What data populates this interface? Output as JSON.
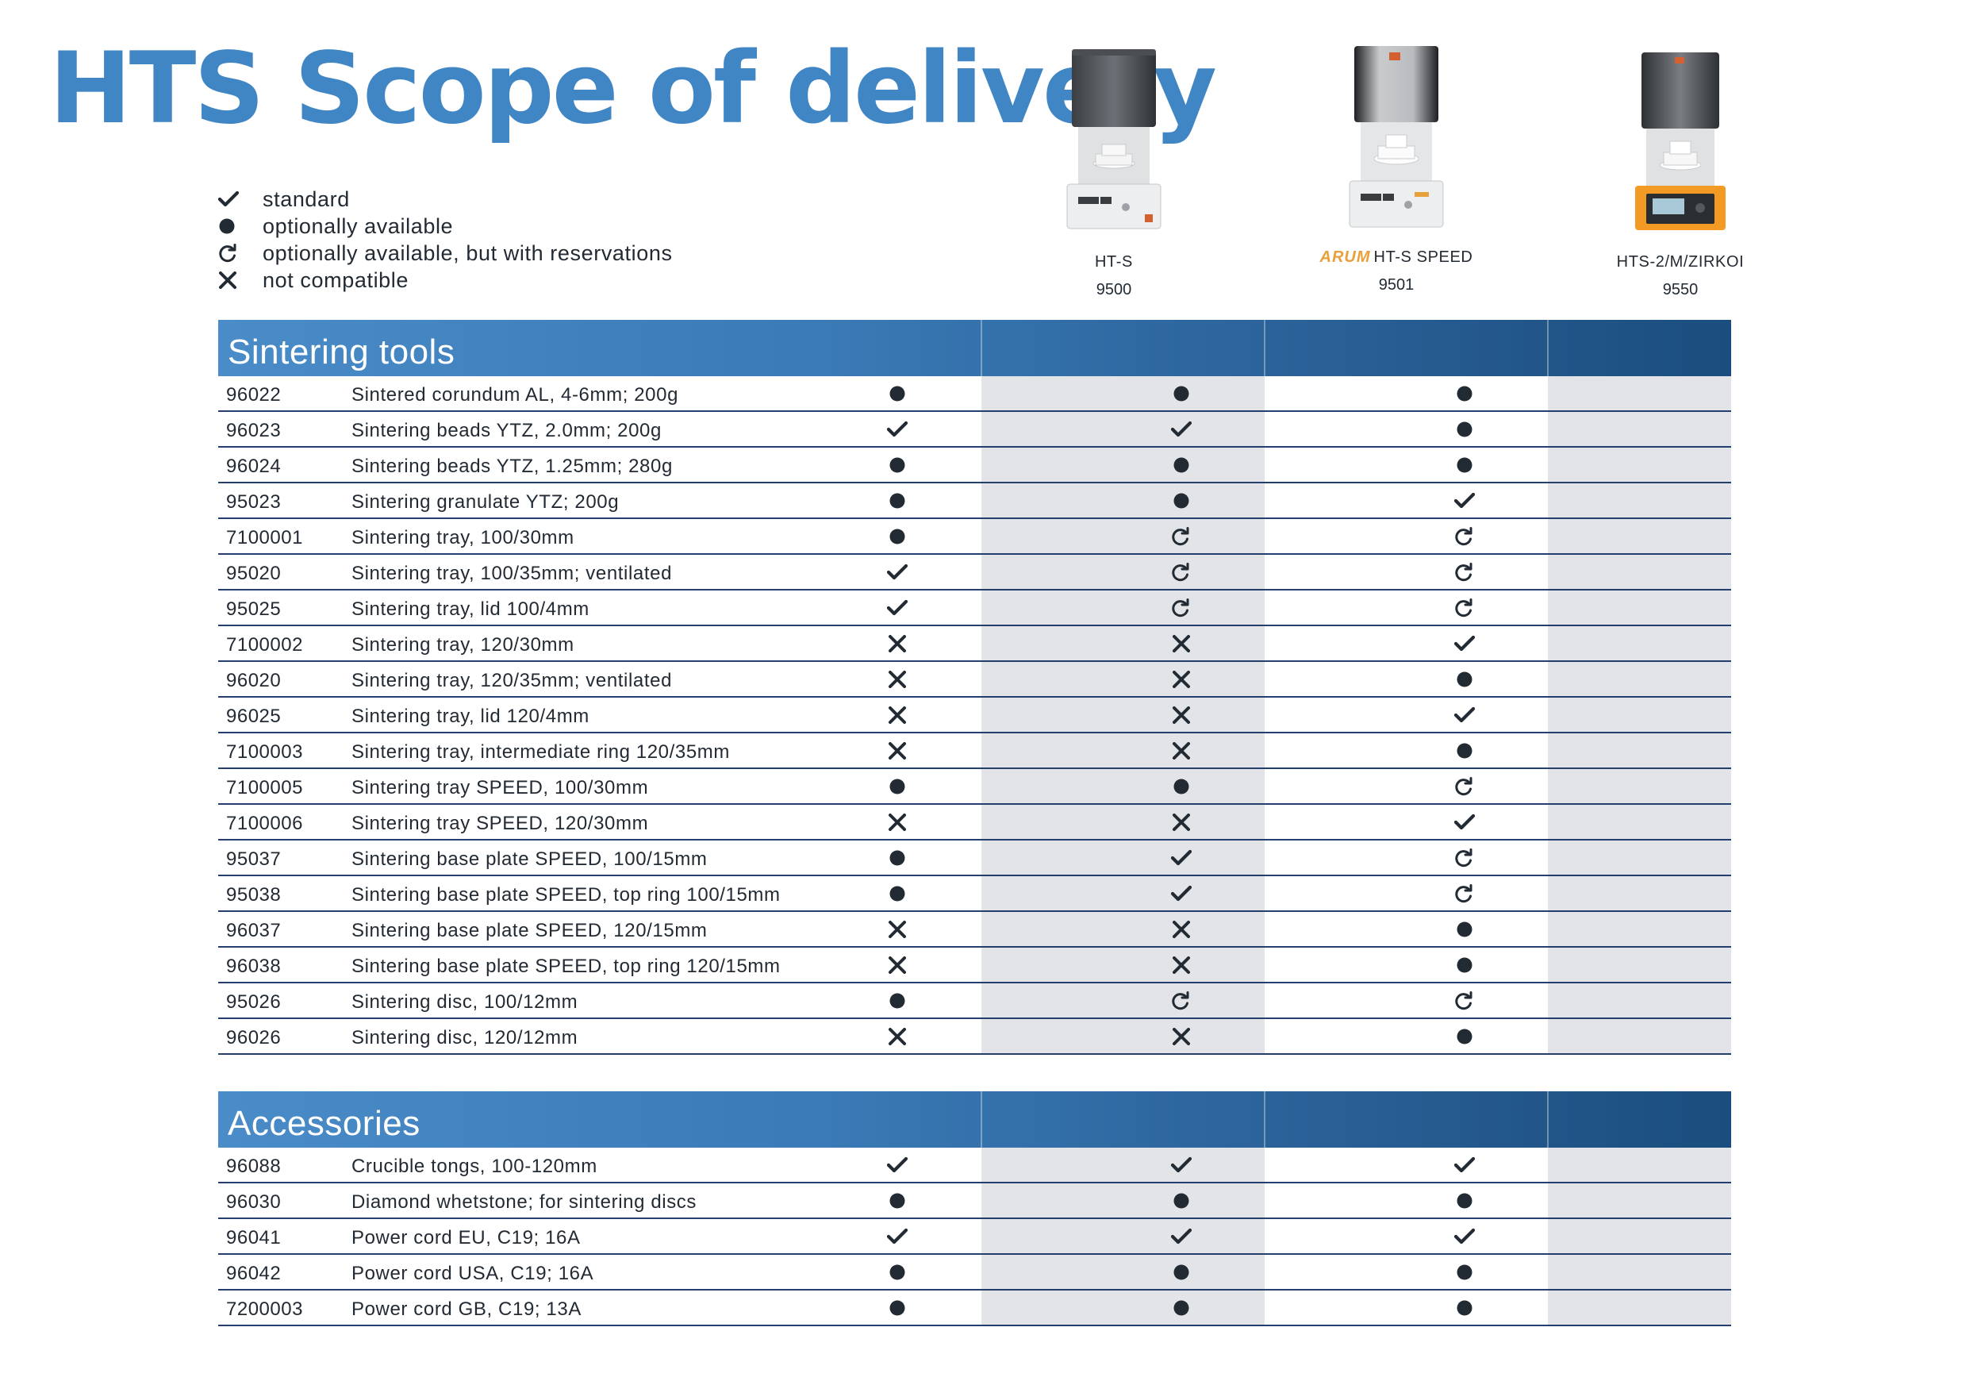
{
  "title": "HTS Scope of delivery",
  "legend": [
    {
      "icon": "check",
      "label": "standard"
    },
    {
      "icon": "dot",
      "label": "optionally available"
    },
    {
      "icon": "reservation",
      "label": "optionally available, but with reservations"
    },
    {
      "icon": "cross",
      "label": "not compatible"
    }
  ],
  "products": [
    {
      "name": "HT-S",
      "number": "9500",
      "brand": ""
    },
    {
      "name": "HT-S SPEED",
      "number": "9501",
      "brand": "ARUM"
    },
    {
      "name": "HTS-2/M/ZIRKOI",
      "number": "9550",
      "brand": ""
    }
  ],
  "colors": {
    "title": "#4186c4",
    "header_start": "#4a8cc8",
    "header_end": "#1b4d7e",
    "row_line": "#243f6e",
    "cell_bg": "#e2e4e7",
    "arum": "#e8a13a"
  },
  "sections": [
    {
      "title": "Sintering tools",
      "rows": [
        {
          "num": "96022",
          "desc": "Sintered corundum AL, 4-6mm; 200g",
          "status": [
            "dot",
            "dot",
            "dot"
          ]
        },
        {
          "num": "96023",
          "desc": "Sintering beads YTZ, 2.0mm; 200g",
          "status": [
            "check",
            "check",
            "dot"
          ]
        },
        {
          "num": "96024",
          "desc": "Sintering beads YTZ, 1.25mm; 280g",
          "status": [
            "dot",
            "dot",
            "dot"
          ]
        },
        {
          "num": "95023",
          "desc": "Sintering granulate YTZ; 200g",
          "status": [
            "dot",
            "dot",
            "check"
          ]
        },
        {
          "num": "7100001",
          "desc": "Sintering tray, 100/30mm",
          "status": [
            "dot",
            "reservation",
            "reservation"
          ]
        },
        {
          "num": "95020",
          "desc": "Sintering tray, 100/35mm; ventilated",
          "status": [
            "check",
            "reservation",
            "reservation"
          ]
        },
        {
          "num": "95025",
          "desc": "Sintering tray, lid 100/4mm",
          "status": [
            "check",
            "reservation",
            "reservation"
          ]
        },
        {
          "num": "7100002",
          "desc": "Sintering tray, 120/30mm",
          "status": [
            "cross",
            "cross",
            "check"
          ]
        },
        {
          "num": "96020",
          "desc": "Sintering tray, 120/35mm; ventilated",
          "status": [
            "cross",
            "cross",
            "dot"
          ]
        },
        {
          "num": "96025",
          "desc": "Sintering tray, lid 120/4mm",
          "status": [
            "cross",
            "cross",
            "check"
          ]
        },
        {
          "num": "7100003",
          "desc": "Sintering tray, intermediate ring 120/35mm",
          "status": [
            "cross",
            "cross",
            "dot"
          ]
        },
        {
          "num": "7100005",
          "desc": "Sintering tray SPEED, 100/30mm",
          "status": [
            "dot",
            "dot",
            "reservation"
          ]
        },
        {
          "num": "7100006",
          "desc": "Sintering tray SPEED, 120/30mm",
          "status": [
            "cross",
            "cross",
            "check"
          ]
        },
        {
          "num": "95037",
          "desc": "Sintering base plate SPEED, 100/15mm",
          "status": [
            "dot",
            "check",
            "reservation"
          ]
        },
        {
          "num": "95038",
          "desc": "Sintering base plate SPEED, top ring 100/15mm",
          "status": [
            "dot",
            "check",
            "reservation"
          ]
        },
        {
          "num": "96037",
          "desc": "Sintering base plate SPEED, 120/15mm",
          "status": [
            "cross",
            "cross",
            "dot"
          ]
        },
        {
          "num": "96038",
          "desc": "Sintering base plate SPEED, top ring 120/15mm",
          "status": [
            "cross",
            "cross",
            "dot"
          ]
        },
        {
          "num": "95026",
          "desc": "Sintering disc, 100/12mm",
          "status": [
            "dot",
            "reservation",
            "reservation"
          ]
        },
        {
          "num": "96026",
          "desc": "Sintering disc, 120/12mm",
          "status": [
            "cross",
            "cross",
            "dot"
          ]
        }
      ]
    },
    {
      "title": "Accessories",
      "rows": [
        {
          "num": "96088",
          "desc": "Crucible tongs, 100-120mm",
          "status": [
            "check",
            "check",
            "check"
          ]
        },
        {
          "num": "96030",
          "desc": "Diamond whetstone; for sintering discs",
          "status": [
            "dot",
            "dot",
            "dot"
          ]
        },
        {
          "num": "96041",
          "desc": "Power cord EU, C19; 16A",
          "status": [
            "check",
            "check",
            "check"
          ]
        },
        {
          "num": "96042",
          "desc": "Power cord USA, C19; 16A",
          "status": [
            "dot",
            "dot",
            "dot"
          ]
        },
        {
          "num": "7200003",
          "desc": "Power cord GB, C19; 13A",
          "status": [
            "dot",
            "dot",
            "dot"
          ]
        }
      ]
    }
  ]
}
